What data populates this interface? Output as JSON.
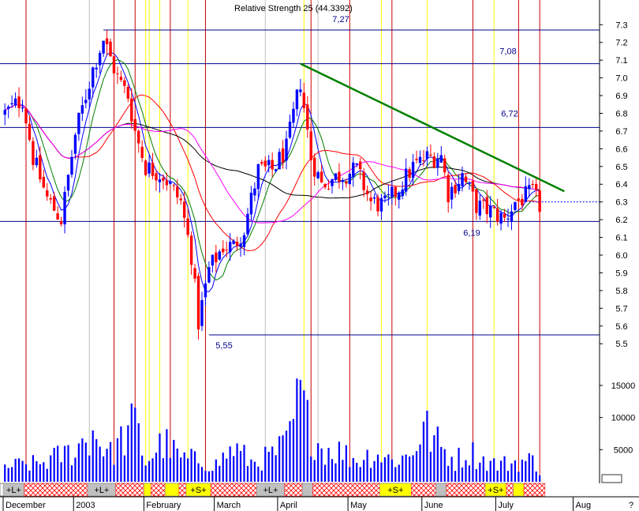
{
  "header": {
    "text": "Relative Strength 25 (44.3392)"
  },
  "colors": {
    "up": "#0000ff",
    "down": "#ff0000",
    "level": "#00008b",
    "trend": "#008000",
    "ma1": "#0000ff",
    "ma2": "#008000",
    "ma3": "#ff0000",
    "ma4": "#000000",
    "ma5": "#ff00ff",
    "vline_red": "#cc0000",
    "vline_yellow": "#ffff00",
    "vline_gray": "#c0c0c0",
    "strip_gray": "#c0c0c0",
    "strip_yellow": "#ffff00",
    "strip_hatch": "#ff0000",
    "last_close": "#0000ff"
  },
  "chart_data": {
    "type": "candlestick",
    "price_axis": {
      "ylim": [
        5.45,
        7.35
      ],
      "ticks": [
        "5.5",
        "5.6",
        "5.7",
        "5.8",
        "5.9",
        "6.0",
        "6.1",
        "6.2",
        "6.3",
        "6.4",
        "6.5",
        "6.6",
        "6.7",
        "6.8",
        "6.9",
        "7.0",
        "7.1",
        "7.2",
        "7.3"
      ]
    },
    "volume_axis": {
      "ylim": [
        0,
        17500
      ],
      "ticks": [
        "5000",
        "10000",
        "15000"
      ]
    },
    "x_axis": {
      "labels": [
        "December",
        "2003",
        "February",
        "March",
        "April",
        "May",
        "June",
        "July",
        "Aug"
      ],
      "bar_index_of_labels": [
        0,
        20,
        40,
        60,
        78,
        98,
        119,
        140,
        162
      ],
      "n_bars": 153
    },
    "horizontal_levels": [
      {
        "value": 7.27,
        "label": "7,27"
      },
      {
        "value": 7.08,
        "label": "7,08"
      },
      {
        "value": 6.72,
        "label": "6,72"
      },
      {
        "value": 6.19,
        "label": "6,19"
      },
      {
        "value": 5.55,
        "label": "5,55"
      }
    ],
    "trendline": {
      "from": {
        "bar": 84,
        "value": 7.08
      },
      "to": {
        "bar": 159,
        "value": 6.36
      }
    },
    "last_close": 6.3,
    "price_anchors": [
      [
        0,
        6.8
      ],
      [
        5,
        6.88
      ],
      [
        8,
        6.55
      ],
      [
        12,
        6.32
      ],
      [
        16,
        6.2
      ],
      [
        20,
        6.68
      ],
      [
        25,
        7.05
      ],
      [
        28,
        7.22
      ],
      [
        32,
        7.0
      ],
      [
        35,
        6.9
      ],
      [
        37,
        6.7
      ],
      [
        40,
        6.5
      ],
      [
        45,
        6.45
      ],
      [
        50,
        6.3
      ],
      [
        53,
        6.0
      ],
      [
        55,
        5.62
      ],
      [
        58,
        5.92
      ],
      [
        62,
        6.05
      ],
      [
        65,
        6.05
      ],
      [
        68,
        6.15
      ],
      [
        72,
        6.48
      ],
      [
        76,
        6.48
      ],
      [
        80,
        6.6
      ],
      [
        84,
        6.98
      ],
      [
        87,
        6.55
      ],
      [
        90,
        6.4
      ],
      [
        95,
        6.45
      ],
      [
        100,
        6.48
      ],
      [
        104,
        6.3
      ],
      [
        108,
        6.28
      ],
      [
        112,
        6.38
      ],
      [
        116,
        6.5
      ],
      [
        120,
        6.55
      ],
      [
        124,
        6.56
      ],
      [
        126,
        6.35
      ],
      [
        130,
        6.45
      ],
      [
        134,
        6.28
      ],
      [
        138,
        6.25
      ],
      [
        142,
        6.2
      ],
      [
        145,
        6.3
      ],
      [
        150,
        6.35
      ],
      [
        152,
        6.28
      ]
    ],
    "volume_anchors": [
      [
        0,
        2500
      ],
      [
        10,
        3000
      ],
      [
        20,
        5200
      ],
      [
        25,
        8200
      ],
      [
        30,
        4500
      ],
      [
        37,
        9500
      ],
      [
        40,
        3200
      ],
      [
        45,
        6500
      ],
      [
        50,
        3800
      ],
      [
        55,
        3500
      ],
      [
        60,
        2800
      ],
      [
        65,
        5500
      ],
      [
        70,
        3200
      ],
      [
        75,
        4000
      ],
      [
        80,
        6000
      ],
      [
        84,
        14000
      ],
      [
        86,
        9500
      ],
      [
        90,
        5500
      ],
      [
        95,
        5000
      ],
      [
        100,
        3500
      ],
      [
        105,
        4800
      ],
      [
        110,
        3500
      ],
      [
        115,
        4200
      ],
      [
        119,
        9000
      ],
      [
        124,
        5500
      ],
      [
        128,
        3500
      ],
      [
        132,
        5000
      ],
      [
        136,
        3500
      ],
      [
        140,
        2800
      ],
      [
        145,
        3200
      ],
      [
        150,
        3500
      ],
      [
        152,
        2000
      ]
    ],
    "moving_averages": [
      {
        "period": 5,
        "color_key": "ma1"
      },
      {
        "period": 8,
        "color_key": "ma2"
      },
      {
        "period": 21,
        "color_key": "ma3"
      },
      {
        "period": 50,
        "color_key": "ma4"
      },
      {
        "period": 34,
        "color_key": "ma5"
      }
    ],
    "vertical_markers": {
      "red": [
        6,
        31,
        37,
        47,
        57,
        87,
        98,
        110,
        133,
        146,
        152
      ],
      "yellow": [
        40,
        41,
        44,
        52,
        85,
        107,
        120,
        139
      ],
      "gray": [
        24,
        74,
        89
      ]
    },
    "signal_strip": {
      "segments": [
        {
          "from": 0,
          "to": 6,
          "kind": "gray",
          "label": "+L+"
        },
        {
          "from": 6,
          "to": 24,
          "kind": "hatch",
          "label": ""
        },
        {
          "from": 24,
          "to": 32,
          "kind": "gray",
          "label": "+L+"
        },
        {
          "from": 32,
          "to": 40,
          "kind": "hatch",
          "label": ""
        },
        {
          "from": 40,
          "to": 42,
          "kind": "yellow",
          "label": ""
        },
        {
          "from": 42,
          "to": 46,
          "kind": "hatch",
          "label": ""
        },
        {
          "from": 46,
          "to": 50,
          "kind": "yellow",
          "label": ""
        },
        {
          "from": 50,
          "to": 52,
          "kind": "hatch",
          "label": ""
        },
        {
          "from": 52,
          "to": 59,
          "kind": "yellow",
          "label": "+S+"
        },
        {
          "from": 59,
          "to": 72,
          "kind": "hatch",
          "label": ""
        },
        {
          "from": 72,
          "to": 80,
          "kind": "gray",
          "label": "+L+"
        },
        {
          "from": 80,
          "to": 85,
          "kind": "hatch",
          "label": ""
        },
        {
          "from": 85,
          "to": 88,
          "kind": "gray",
          "label": ""
        },
        {
          "from": 88,
          "to": 107,
          "kind": "hatch",
          "label": ""
        },
        {
          "from": 107,
          "to": 116,
          "kind": "yellow",
          "label": "+S+"
        },
        {
          "from": 116,
          "to": 123,
          "kind": "hatch",
          "label": ""
        },
        {
          "from": 123,
          "to": 126,
          "kind": "gray",
          "label": ""
        },
        {
          "from": 126,
          "to": 137,
          "kind": "hatch",
          "label": ""
        },
        {
          "from": 137,
          "to": 143,
          "kind": "yellow",
          "label": "+S+"
        },
        {
          "from": 143,
          "to": 145,
          "kind": "hatch",
          "label": ""
        },
        {
          "from": 145,
          "to": 148,
          "kind": "yellow",
          "label": ""
        },
        {
          "from": 148,
          "to": 154,
          "kind": "hatch",
          "label": ""
        }
      ]
    },
    "question_mark": "?"
  }
}
